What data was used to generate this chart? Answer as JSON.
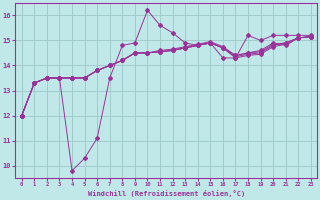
{
  "xlabel": "Windchill (Refroidissement éolien,°C)",
  "background_color": "#c0e8e8",
  "grid_color": "#a0cccc",
  "line_color": "#993399",
  "xlim": [
    -0.5,
    23.5
  ],
  "ylim": [
    9.5,
    16.5
  ],
  "yticks": [
    10,
    11,
    12,
    13,
    14,
    15,
    16
  ],
  "xticks": [
    0,
    1,
    2,
    3,
    4,
    5,
    6,
    7,
    8,
    9,
    10,
    11,
    12,
    13,
    14,
    15,
    16,
    17,
    18,
    19,
    20,
    21,
    22,
    23
  ],
  "series": [
    [
      12.0,
      13.3,
      13.5,
      13.5,
      9.8,
      10.3,
      11.1,
      13.5,
      14.8,
      14.9,
      16.2,
      15.6,
      15.3,
      14.9,
      14.8,
      14.9,
      14.3,
      14.3,
      15.2,
      15.0,
      15.2,
      15.2,
      15.2,
      15.2
    ],
    [
      12.0,
      13.3,
      13.5,
      13.5,
      13.5,
      13.5,
      13.8,
      14.0,
      14.2,
      14.5,
      14.5,
      14.6,
      14.65,
      14.75,
      14.85,
      14.95,
      14.75,
      14.4,
      14.5,
      14.6,
      14.9,
      14.8,
      15.1,
      15.15
    ],
    [
      12.0,
      13.3,
      13.5,
      13.5,
      13.5,
      13.5,
      13.8,
      14.0,
      14.2,
      14.5,
      14.5,
      14.55,
      14.6,
      14.7,
      14.8,
      14.9,
      14.7,
      14.3,
      14.4,
      14.45,
      14.75,
      14.85,
      15.1,
      15.15
    ],
    [
      12.0,
      13.3,
      13.5,
      13.5,
      13.5,
      13.5,
      13.8,
      14.0,
      14.2,
      14.5,
      14.5,
      14.55,
      14.6,
      14.7,
      14.8,
      14.9,
      14.7,
      14.35,
      14.45,
      14.5,
      14.8,
      14.9,
      15.1,
      15.15
    ],
    [
      12.0,
      13.3,
      13.5,
      13.5,
      13.5,
      13.5,
      13.8,
      14.0,
      14.2,
      14.5,
      14.5,
      14.55,
      14.6,
      14.7,
      14.8,
      14.9,
      14.7,
      14.4,
      14.5,
      14.55,
      14.85,
      14.9,
      15.1,
      15.15
    ]
  ]
}
